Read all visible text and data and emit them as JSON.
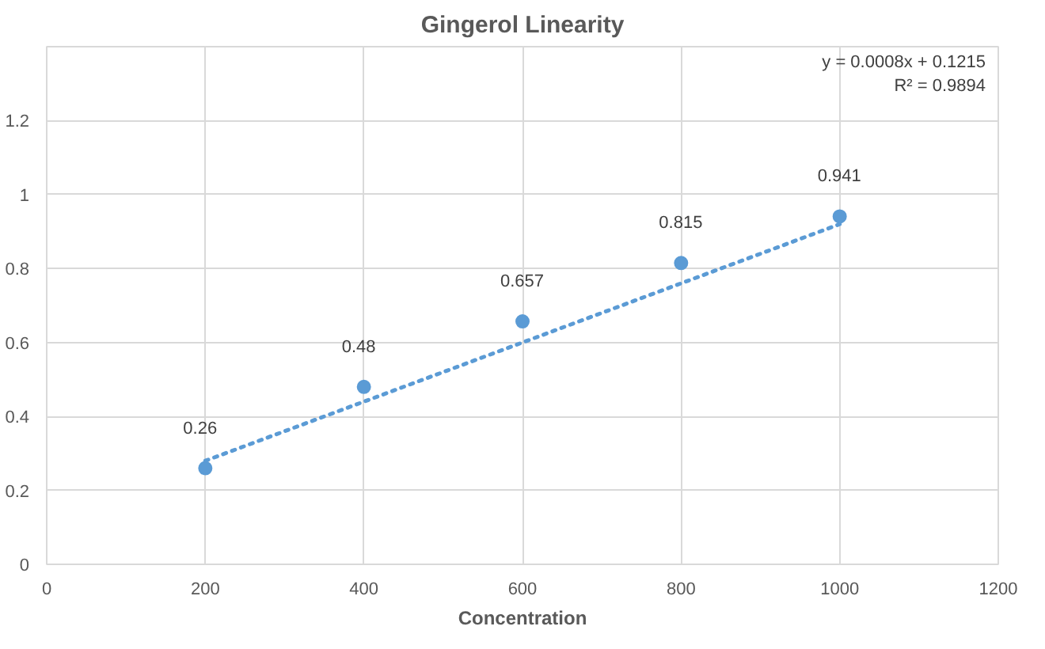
{
  "chart_data": {
    "type": "scatter",
    "title": "Gingerol Linearity",
    "xlabel": "Concentration",
    "x": [
      200,
      400,
      600,
      800,
      1000
    ],
    "series": [
      {
        "color": "#5b9bd5",
        "values": [
          0.26,
          0.48,
          0.657,
          0.815,
          0.941
        ],
        "value_labels": [
          "0.26",
          "0.48",
          "0.657",
          "0.815",
          "0.941"
        ],
        "marker": "circle"
      },
      {
        "type": "line",
        "color": "#5b9bd5",
        "x": [
          200,
          1000
        ],
        "values": [
          0.28,
          0.92
        ],
        "line_style": "dotted",
        "marker": "none"
      }
    ],
    "annotations": [
      "y = 0.0008x + 0.1215",
      "R² = 0.9894"
    ],
    "xlim": [
      0,
      1200
    ],
    "xticks": [
      0,
      200,
      400,
      600,
      800,
      1000,
      1200
    ],
    "ylim": [
      0,
      1.4
    ],
    "yticks": [
      0,
      0.2,
      0.4,
      0.6,
      0.8,
      1,
      1.2
    ],
    "grid": true
  }
}
